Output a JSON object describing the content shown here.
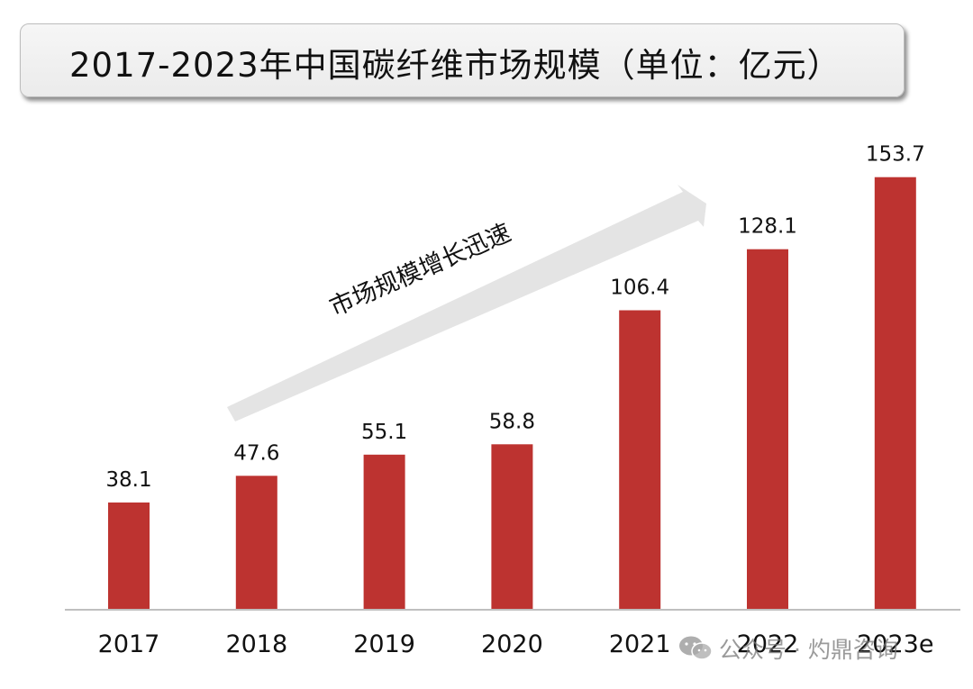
{
  "title": "2017-2023年中国碳纤维市场规模（单位：亿元）",
  "chart_data": {
    "type": "bar",
    "categories": [
      "2017",
      "2018",
      "2019",
      "2020",
      "2021",
      "2022",
      "2023e"
    ],
    "values": [
      38.1,
      47.6,
      55.1,
      58.8,
      106.4,
      128.1,
      153.7
    ],
    "value_labels": [
      "38.1",
      "47.6",
      "55.1",
      "58.8",
      "106.4",
      "128.1",
      "153.7"
    ],
    "title": "2017-2023年中国碳纤维市场规模（单位：亿元）",
    "ylim": [
      0,
      160
    ],
    "grid": false,
    "bar_color": "#bd3330",
    "annotation": "市场规模增长迅速"
  },
  "colors": {
    "bar": "#bd3330",
    "arrow": "#e4e4e4",
    "axis": "#bfbfbf"
  },
  "watermark": {
    "text": "公众号 · 灼鼎咨询",
    "icon": "wechat-icon"
  }
}
